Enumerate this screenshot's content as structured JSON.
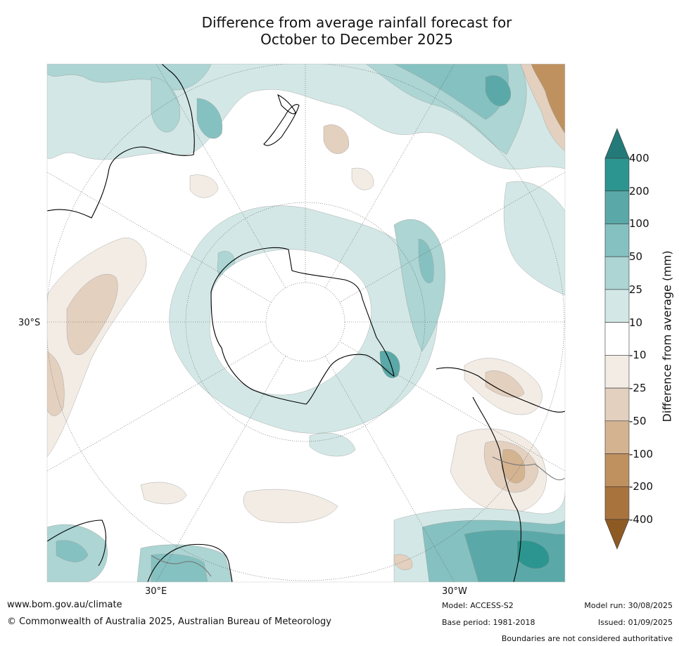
{
  "title": {
    "line1": "Difference from average rainfall forecast for",
    "line2": "October to December 2025"
  },
  "map": {
    "projection": "south-polar-stereographic",
    "lat_label": "30°S",
    "lon_labels": [
      "30°E",
      "30°W"
    ]
  },
  "colorbar": {
    "label": "Difference from average (mm)",
    "ticks": [
      "400",
      "200",
      "100",
      "50",
      "25",
      "10",
      "-10",
      "-25",
      "-50",
      "-100",
      "-200",
      "-400"
    ],
    "bin_colors": [
      "#2d9590",
      "#5aa9a8",
      "#85c1c0",
      "#acd5d3",
      "#d3e8e6",
      "#ffffff",
      "#f2ece5",
      "#e3d0bf",
      "#d4b391",
      "#be915f",
      "#a9733e"
    ],
    "extend_top_color": "#247a78",
    "extend_bottom_color": "#8e5a24"
  },
  "footer": {
    "website": "www.bom.gov.au/climate",
    "copyright": "© Commonwealth of Australia 2025, Australian Bureau of Meteorology",
    "model": "Model: ACCESS-S2",
    "base_period": "Base period: 1981-2018",
    "model_run": "Model run: 30/08/2025",
    "issued": "Issued: 01/09/2025",
    "disclaimer": "Boundaries are not considered authoritative"
  }
}
